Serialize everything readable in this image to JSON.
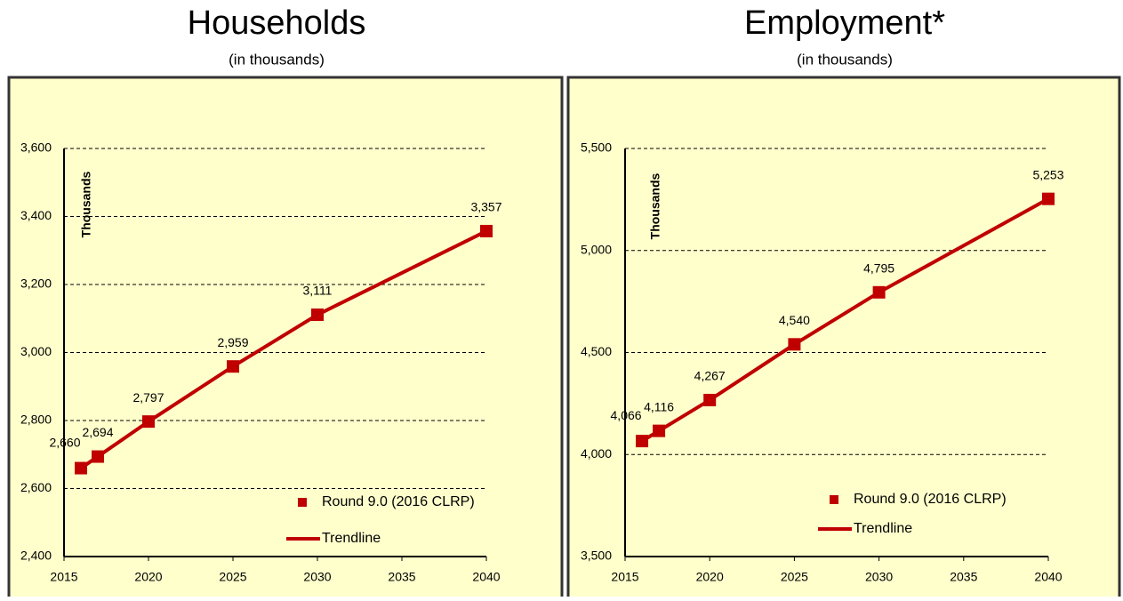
{
  "chart_data": [
    {
      "type": "line",
      "title": "Households",
      "subtitle": "(in thousands)",
      "y_label": "Thousands",
      "x": [
        2016,
        2017,
        2020,
        2025,
        2030,
        2040
      ],
      "series": [
        {
          "name": "Round 9.0 (2016 CLRP)",
          "color": "#c00000",
          "marker": "square",
          "values": [
            2660,
            2694,
            2797,
            2959,
            3111,
            3357
          ],
          "value_labels": [
            "2,660",
            "2,694",
            "2,797",
            "2,959",
            "3,111",
            "3,357"
          ]
        },
        {
          "name": "Trendline",
          "color": "#c00000",
          "marker": "none",
          "values": [
            2660,
            2694,
            2797,
            2959,
            3111,
            3357
          ]
        }
      ],
      "xlim": [
        2015,
        2040
      ],
      "xticks": [
        2015,
        2020,
        2025,
        2030,
        2035,
        2040
      ],
      "ylim": [
        2400,
        3600
      ],
      "yticks": [
        {
          "value": 2400,
          "label": "2,400"
        },
        {
          "value": 2600,
          "label": "2,600"
        },
        {
          "value": 2800,
          "label": "2,800"
        },
        {
          "value": 3000,
          "label": "3,000"
        },
        {
          "value": 3200,
          "label": "3,200"
        },
        {
          "value": 3400,
          "label": "3,400"
        },
        {
          "value": 3600,
          "label": "3,600"
        }
      ],
      "grid": true
    },
    {
      "type": "line",
      "title": "Employment*",
      "subtitle": "(in thousands)",
      "y_label": "Thousands",
      "x": [
        2016,
        2017,
        2020,
        2025,
        2030,
        2040
      ],
      "series": [
        {
          "name": "Round 9.0 (2016 CLRP)",
          "color": "#c00000",
          "marker": "square",
          "values": [
            4066,
            4116,
            4267,
            4540,
            4795,
            5253
          ],
          "value_labels": [
            "4,066",
            "4,116",
            "4,267",
            "4,540",
            "4,795",
            "5,253"
          ]
        },
        {
          "name": "Trendline",
          "color": "#c00000",
          "marker": "none",
          "values": [
            4066,
            4116,
            4267,
            4540,
            4795,
            5253
          ]
        }
      ],
      "xlim": [
        2015,
        2040
      ],
      "xticks": [
        2015,
        2020,
        2025,
        2030,
        2035,
        2040
      ],
      "ylim": [
        3500,
        5500
      ],
      "yticks": [
        {
          "value": 3500,
          "label": "3,500"
        },
        {
          "value": 4000,
          "label": "4,000"
        },
        {
          "value": 4500,
          "label": "4,500"
        },
        {
          "value": 5000,
          "label": "5,000"
        },
        {
          "value": 5500,
          "label": "5,500"
        }
      ],
      "grid": true
    }
  ]
}
